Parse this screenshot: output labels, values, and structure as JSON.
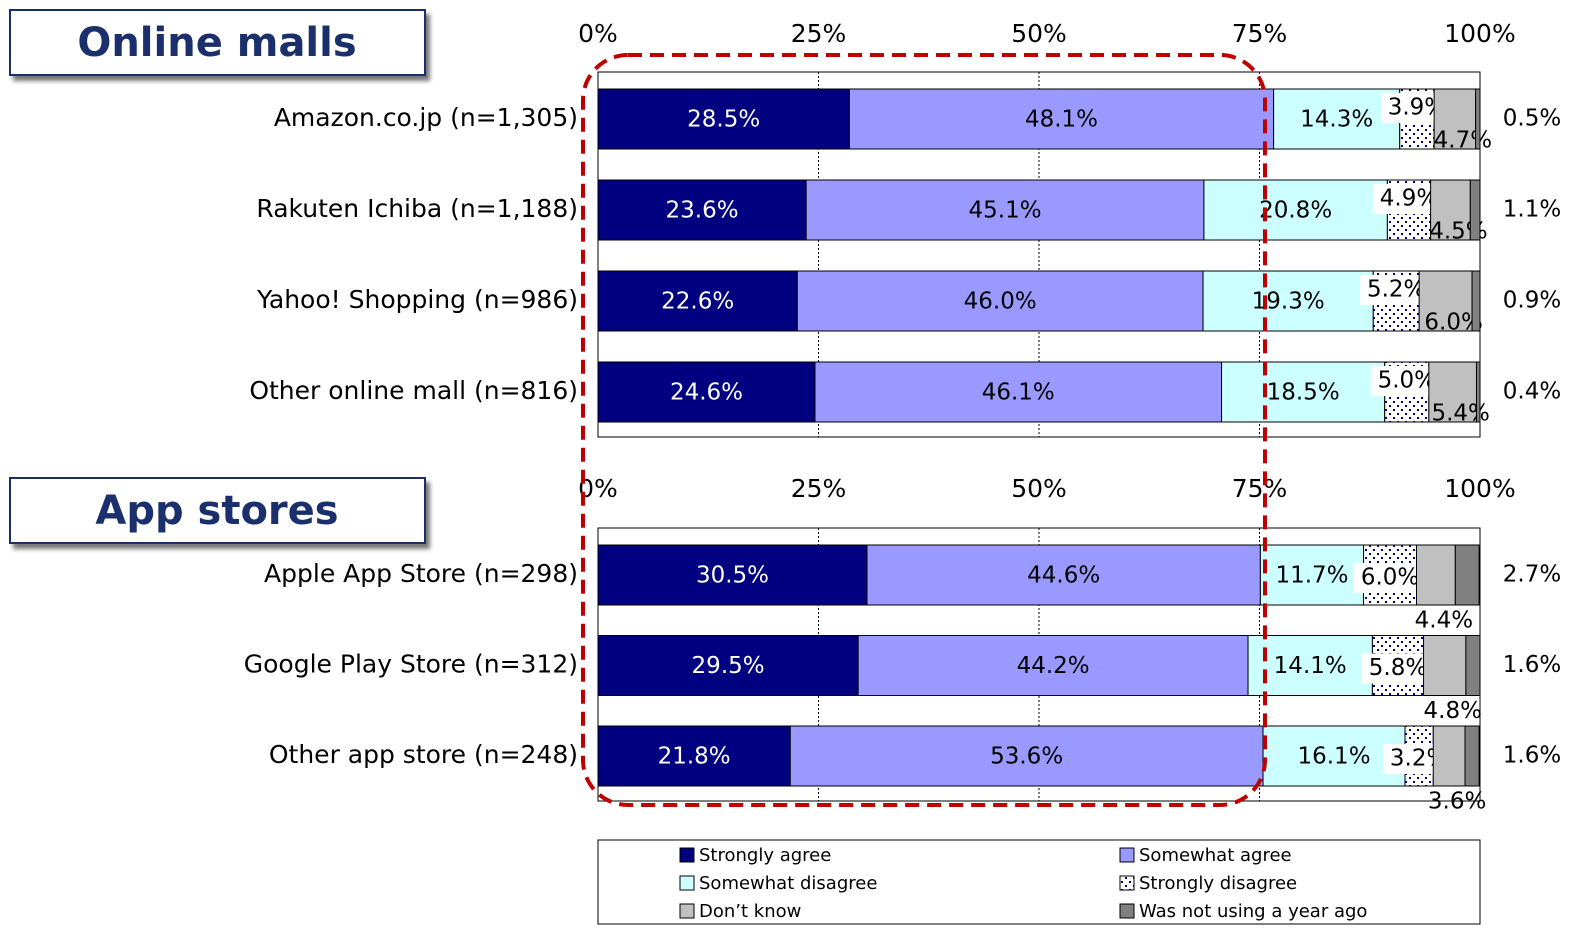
{
  "chart_data": [
    {
      "type": "stacked-barh",
      "title": "Online malls",
      "categories": [
        "Amazon.co.jp (n=1,305)",
        "Rakuten Ichiba (n=1,188)",
        "Yahoo! Shopping (n=986)",
        "Other online mall (n=816)"
      ],
      "series": [
        {
          "name": "Strongly agree",
          "color": "#000080",
          "values": [
            28.5,
            23.6,
            22.6,
            24.6
          ],
          "value_labels": [
            "28.5%",
            "23.6%",
            "22.6%",
            "24.6%"
          ]
        },
        {
          "name": "Somewhat agree",
          "color": "#9999ff",
          "values": [
            48.1,
            45.1,
            46.0,
            46.1
          ],
          "value_labels": [
            "48.1%",
            "45.1%",
            "46.0%",
            "46.1%"
          ]
        },
        {
          "name": "Somewhat disagree",
          "color": "#ccffff",
          "values": [
            14.3,
            20.8,
            19.3,
            18.5
          ],
          "value_labels": [
            "14.3%",
            "20.8%",
            "19.3%",
            "18.5%"
          ]
        },
        {
          "name": "Strongly disagree",
          "color": "#000080",
          "pattern": "dots",
          "values": [
            3.9,
            4.9,
            5.2,
            5.0
          ],
          "value_labels": [
            "3.9%",
            "4.9%",
            "5.2%",
            "5.0%"
          ]
        },
        {
          "name": "Don’t know",
          "color": "#c0c0c0",
          "values": [
            4.7,
            4.5,
            6.0,
            5.4
          ],
          "value_labels": [
            "4.7%",
            "4.5%",
            "6.0%",
            "5.4%"
          ]
        },
        {
          "name": "Was not using a year ago",
          "color": "#808080",
          "values": [
            0.5,
            1.1,
            0.9,
            0.4
          ],
          "value_labels": [
            "0.5%",
            "1.1%",
            "0.9%",
            "0.4%"
          ]
        }
      ],
      "xlim": [
        0,
        100
      ],
      "xticks": [
        {
          "value": 0,
          "label": "0%"
        },
        {
          "value": 25,
          "label": "25%"
        },
        {
          "value": 50,
          "label": "50%"
        },
        {
          "value": 75,
          "label": "75%"
        },
        {
          "value": 100,
          "label": "100%"
        }
      ],
      "grid": true
    },
    {
      "type": "stacked-barh",
      "title": "App stores",
      "categories": [
        "Apple App Store (n=298)",
        "Google Play Store (n=312)",
        "Other app store (n=248)"
      ],
      "series": [
        {
          "color": "#000080",
          "values": [
            30.5,
            29.5,
            21.8
          ],
          "value_labels": [
            "30.5%",
            "29.5%",
            "21.8%"
          ]
        },
        {
          "color": "#9999ff",
          "values": [
            44.6,
            44.2,
            53.6
          ],
          "value_labels": [
            "44.6%",
            "44.2%",
            "53.6%"
          ]
        },
        {
          "color": "#ccffff",
          "values": [
            11.7,
            14.1,
            16.1
          ],
          "value_labels": [
            "11.7%",
            "14.1%",
            "16.1%"
          ]
        },
        {
          "color": "#000080",
          "pattern": "dots",
          "values": [
            6.0,
            5.8,
            3.2
          ],
          "value_labels": [
            "6.0%",
            "5.8%",
            "3.2%"
          ]
        },
        {
          "color": "#c0c0c0",
          "values": [
            4.4,
            4.8,
            3.6
          ],
          "value_labels": [
            "4.4%",
            "4.8%",
            "3.6%"
          ]
        },
        {
          "color": "#808080",
          "values": [
            2.7,
            1.6,
            1.6
          ],
          "value_labels": [
            "2.7%",
            "1.6%",
            "1.6%"
          ]
        }
      ],
      "xlim": [
        0,
        100
      ],
      "xticks": [
        {
          "value": 0,
          "label": "0%"
        },
        {
          "value": 25,
          "label": "25%"
        },
        {
          "value": 50,
          "label": "50%"
        },
        {
          "value": 75,
          "label": "75%"
        },
        {
          "value": 100,
          "label": "100%"
        }
      ],
      "grid": true
    }
  ]
}
